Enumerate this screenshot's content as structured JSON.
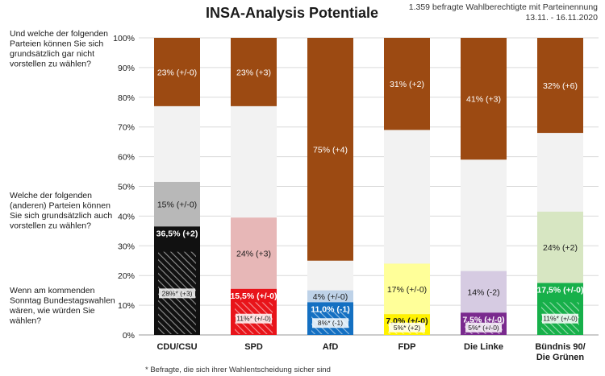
{
  "title": "INSA-Analysis Potentiale",
  "meta": {
    "line1": "1.359 befragte Wahlberechtigte mit Parteinennung",
    "line2": "13.11. - 16.11.2020"
  },
  "side_labels": {
    "top": [
      "Und welche der folgenden",
      "Parteien können Sie sich",
      "grundsätzlich gar nicht",
      "vorstellen zu wählen?"
    ],
    "middle": [
      "Welche der folgenden",
      "(anderen) Parteien können",
      "Sie sich grundsätzlich auch",
      "vorstellen zu wählen?"
    ],
    "bottom": [
      "Wenn am kommenden",
      "Sonntag Bundestagswahlen",
      "wären, wie würden Sie",
      "wählen?"
    ]
  },
  "footnote": "* Befragte, die sich ihrer Wahlentscheidung sicher sind",
  "chart_data": {
    "type": "bar",
    "stacked": true,
    "ylim": [
      0,
      100
    ],
    "yticks": [
      "0%",
      "10%",
      "20%",
      "30%",
      "40%",
      "50%",
      "60%",
      "70%",
      "80%",
      "90%",
      "100%"
    ],
    "categories": [
      [
        "CDU/CSU"
      ],
      [
        "SPD"
      ],
      [
        "AfD"
      ],
      [
        "FDP"
      ],
      [
        "Die Linke"
      ],
      [
        "Bündnis 90/",
        "Die Grünen"
      ]
    ],
    "colors": {
      "cannot": "#9c4a12",
      "undecided": "#f2f2f2",
      "party": [
        "#111111",
        "#e8141a",
        "#1470c2",
        "#fff200",
        "#7a2a8e",
        "#17b04a"
      ],
      "potential": [
        "#b8b8b8",
        "#e7b7b7",
        "#bed2e8",
        "#ffff99",
        "#d6cbe2",
        "#d7e6c2"
      ]
    },
    "series": [
      {
        "key": "vote",
        "values": [
          36.5,
          15.5,
          11.0,
          7.0,
          7.5,
          17.5
        ],
        "labels": [
          "36,5% (+2)",
          "15,5% (+/-0)",
          "11,0% (-1)",
          "7,0% (+/-0)",
          "7,5% (+/-0)",
          "17,5% (+/-0)"
        ]
      },
      {
        "key": "sure",
        "values": [
          28,
          11,
          8,
          5,
          5,
          11
        ],
        "labels": [
          "28%* (+3)",
          "11%* (+/-0)",
          "8%* (-1)",
          "5%* (+2)",
          "5%* (+/-0)",
          "11%* (+/-0)"
        ]
      },
      {
        "key": "potential",
        "values": [
          15,
          24,
          4,
          17,
          14,
          24
        ],
        "labels": [
          "15% (+/-0)",
          "24% (+3)",
          "4% (+/-0)",
          "17% (+/-0)",
          "14% (-2)",
          "24% (+2)"
        ]
      },
      {
        "key": "cannot",
        "values": [
          23,
          23,
          75,
          31,
          41,
          32
        ],
        "labels": [
          "23% (+/-0)",
          "23% (+3)",
          "75% (+4)",
          "31% (+2)",
          "41% (+3)",
          "32% (+6)"
        ]
      }
    ]
  }
}
